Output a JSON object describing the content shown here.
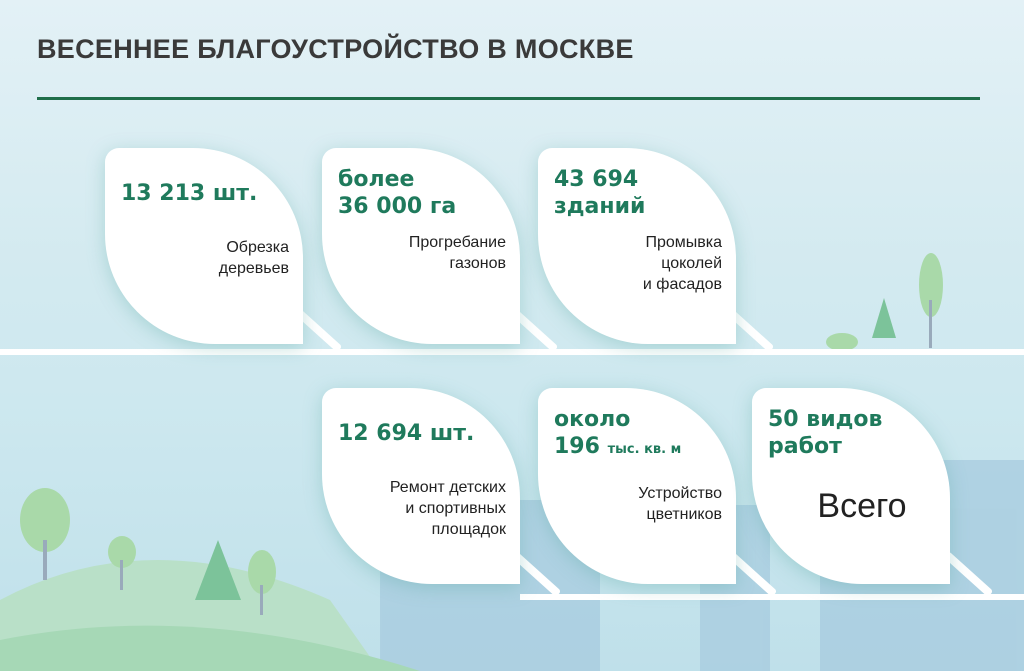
{
  "title": "ВЕСЕННЕЕ БЛАГОУСТРОЙСТВО В МОСКВЕ",
  "colors": {
    "accent": "#1f7a5c",
    "rule": "#1f6e4a",
    "title": "#3a3a3a"
  },
  "cards": [
    {
      "value": "13 213 шт.",
      "label_lines": [
        "Обрезка",
        "деревьев"
      ]
    },
    {
      "value_lines": [
        "более",
        "36 000 га"
      ],
      "label_lines": [
        "Прогребание",
        "газонов"
      ]
    },
    {
      "value_lines": [
        "43 694",
        "зданий"
      ],
      "label_lines": [
        "Промывка",
        "цоколей",
        "и фасадов"
      ]
    },
    {
      "value": "12 694 шт.",
      "label_lines": [
        "Ремонт детских",
        "и спортивных",
        "площадок"
      ]
    },
    {
      "value_lines": [
        "около",
        "196"
      ],
      "value_unit": "тыс. кв. м",
      "label_lines": [
        "Устройство",
        "цветников"
      ]
    },
    {
      "value_lines": [
        "50 видов",
        "работ"
      ],
      "label": "Всего"
    }
  ]
}
